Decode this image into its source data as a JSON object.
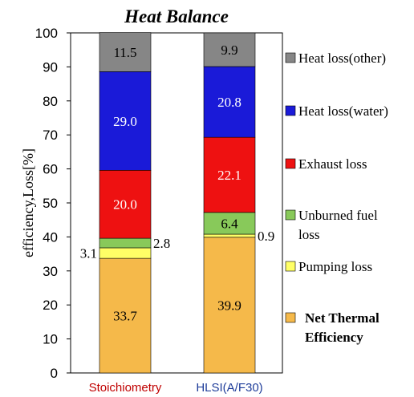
{
  "chart_data": {
    "type": "bar",
    "stacked": true,
    "title": "Heat Balance",
    "ylabel": "efficiency,Loss[%]",
    "xlabel": "",
    "ylim": [
      0,
      100
    ],
    "yticks": [
      0,
      10,
      20,
      30,
      40,
      50,
      60,
      70,
      80,
      90,
      100
    ],
    "grid": false,
    "legend_position": "right",
    "categories": [
      "Stoichiometry",
      "HLSI(A/F30)"
    ],
    "category_colors": [
      "#c00000",
      "#1f3d9a"
    ],
    "series": [
      {
        "name": "Net Thermal Efficiency",
        "color": "#f5b94a",
        "values": [
          33.7,
          39.9
        ],
        "labels": [
          "33.7",
          "39.9"
        ],
        "label_pos": [
          "inside",
          "inside"
        ]
      },
      {
        "name": "Pumping loss",
        "color": "#ffff66",
        "values": [
          3.1,
          0.9
        ],
        "labels": [
          "3.1",
          "0.9"
        ],
        "label_pos": [
          "left",
          "right"
        ]
      },
      {
        "name": "Unburned fuel loss",
        "color": "#88c95a",
        "values": [
          2.8,
          6.4
        ],
        "labels": [
          "2.8",
          "6.4"
        ],
        "label_pos": [
          "right",
          "inside"
        ]
      },
      {
        "name": "Exhaust loss",
        "color": "#ee1111",
        "values": [
          20.0,
          22.1
        ],
        "labels": [
          "20.0",
          "22.1"
        ],
        "label_pos": [
          "inside",
          "inside"
        ]
      },
      {
        "name": "Heat loss(water)",
        "color": "#1a1ad8",
        "values": [
          29.0,
          20.8
        ],
        "labels": [
          "29.0",
          "20.8"
        ],
        "label_pos": [
          "inside",
          "inside"
        ]
      },
      {
        "name": "Heat loss(other)",
        "color": "#868686",
        "values": [
          11.5,
          9.9
        ],
        "labels": [
          "11.5",
          "9.9"
        ],
        "label_pos": [
          "inside",
          "inside"
        ]
      }
    ],
    "legend": [
      {
        "text": "Heat loss(other)",
        "color": "#868686",
        "bold": false
      },
      {
        "text": "Heat loss(water)",
        "color": "#1a1ad8",
        "bold": false
      },
      {
        "text": "Exhaust loss",
        "color": "#ee1111",
        "bold": false
      },
      {
        "text": "Unburned fuel\nloss",
        "color": "#88c95a",
        "bold": false
      },
      {
        "text": "Pumping loss",
        "color": "#ffff66",
        "bold": false
      },
      {
        "text": "Net Thermal\nEfficiency",
        "color": "#f5b94a",
        "bold": true
      }
    ]
  }
}
